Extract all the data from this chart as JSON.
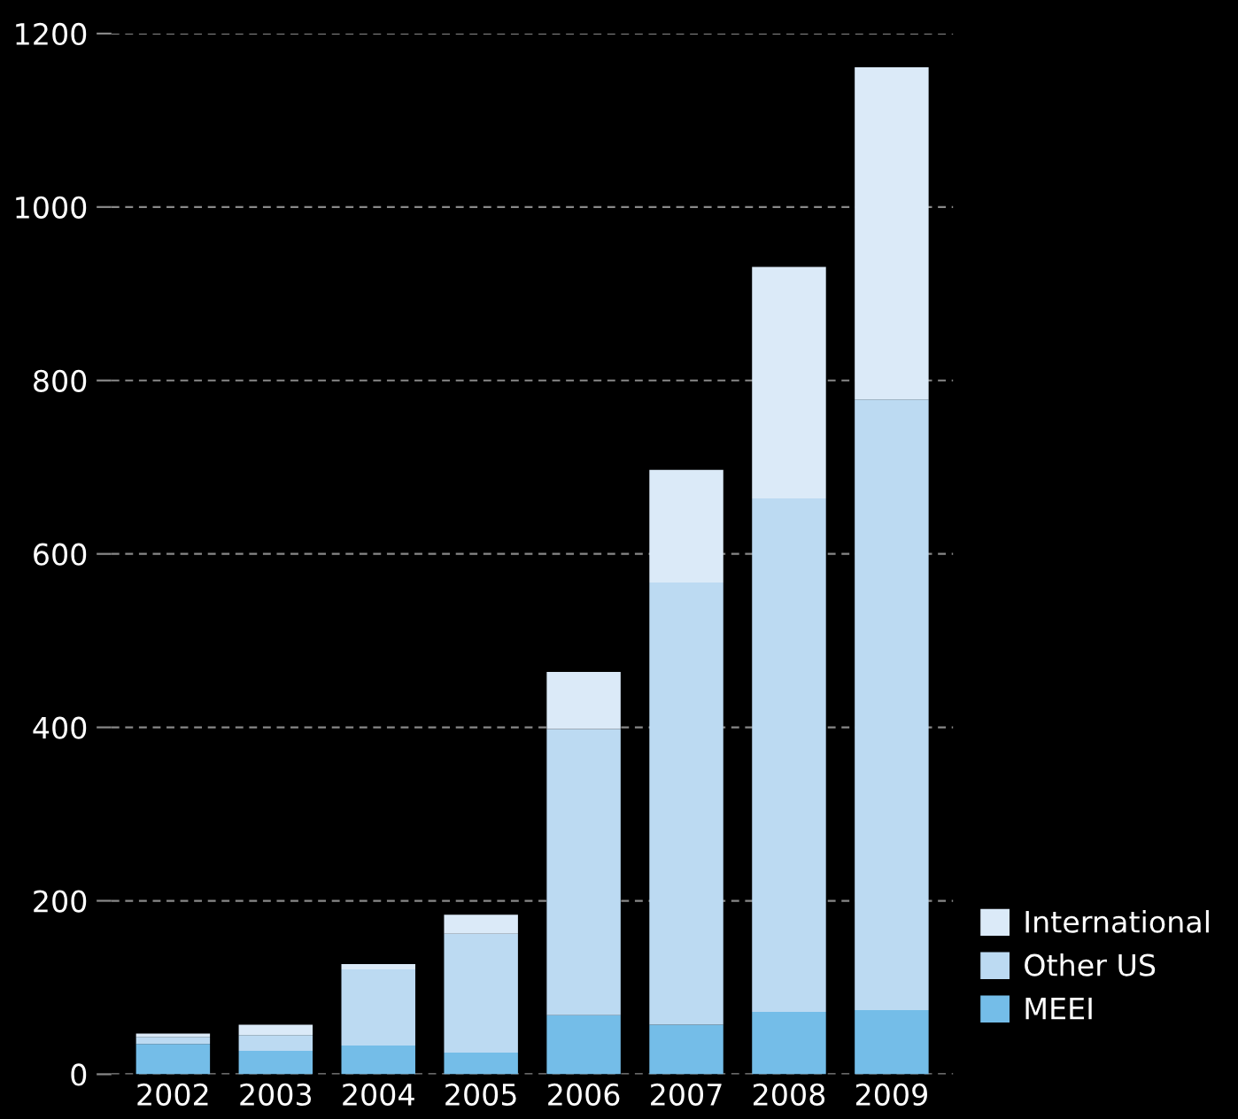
{
  "chart_data": {
    "type": "bar",
    "stacked": true,
    "categories": [
      "2002",
      "2003",
      "2004",
      "2005",
      "2006",
      "2007",
      "2008",
      "2009"
    ],
    "series": [
      {
        "name": "MEEI",
        "color": "#74bde8",
        "values": [
          35,
          27,
          33,
          25,
          68,
          57,
          72,
          74
        ]
      },
      {
        "name": "Other US",
        "color": "#bcdaf2",
        "values": [
          8,
          18,
          88,
          137,
          330,
          510,
          592,
          704
        ]
      },
      {
        "name": "International",
        "color": "#dbeaf8",
        "values": [
          4,
          12,
          6,
          22,
          66,
          130,
          267,
          383
        ]
      }
    ],
    "ylim": [
      0,
      1200
    ],
    "yticks": [
      0,
      200,
      400,
      600,
      800,
      1000,
      1200
    ],
    "grid": "y",
    "legend": "bottom right"
  }
}
